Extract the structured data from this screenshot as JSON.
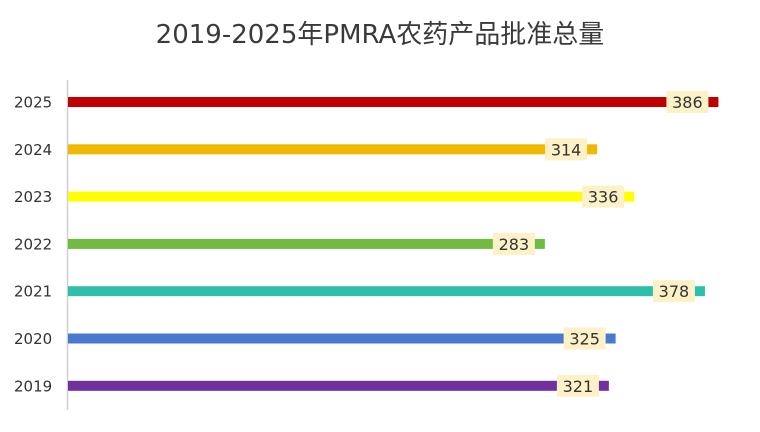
{
  "chart_data": {
    "type": "bar",
    "orientation": "horizontal",
    "title": "2019-2025年PMRA农药产品批准总量",
    "xlabel": "",
    "ylabel": "",
    "xlim": [
      0,
      400
    ],
    "grid": false,
    "legend": "none",
    "categories": [
      "2025",
      "2024",
      "2023",
      "2022",
      "2021",
      "2020",
      "2019"
    ],
    "values": [
      386,
      314,
      336,
      283,
      378,
      325,
      321
    ],
    "colors": [
      "#c00000",
      "#f0b800",
      "#ffff00",
      "#70bb40",
      "#2dbfaa",
      "#4a78cc",
      "#7030a0"
    ],
    "label_background": "#fdf1c7"
  }
}
